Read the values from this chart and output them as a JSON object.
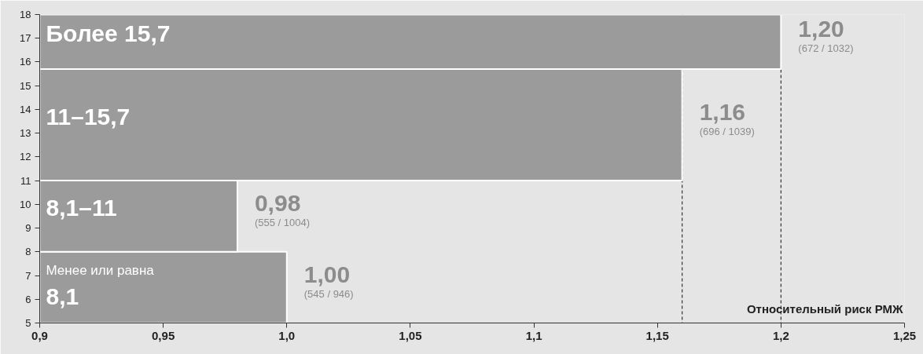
{
  "chart_data": {
    "type": "histogram",
    "orientation": "horizontal",
    "xlabel": "Относительный риск РМЖ",
    "bins": [
      5,
      8,
      11,
      15.7,
      18
    ],
    "values": [
      1.0,
      0.98,
      1.16,
      1.2
    ],
    "color": "#9b9b9b",
    "value_labels": [
      "1,00",
      "0,98",
      "1,16",
      "1,20"
    ],
    "annotations": [
      {
        "text": "Менее или равна 8,1",
        "x": 0.9,
        "y": 6.5
      },
      {
        "text": "8,1–11",
        "x": 0.9,
        "y": 9.5
      },
      {
        "text": "11–15,7",
        "x": 0.9,
        "y": 13.35
      },
      {
        "text": "Более 15,7",
        "x": 0.9,
        "y": 16.85
      },
      {
        "text": "(545 / 946)",
        "x": 1.0,
        "y": 6.5
      },
      {
        "text": "(555 / 1004)",
        "x": 0.98,
        "y": 9.5
      },
      {
        "text": "(696 / 1039)",
        "x": 1.16,
        "y": 13.35
      },
      {
        "text": "(672 / 1032)",
        "x": 1.2,
        "y": 16.85
      }
    ],
    "ref_lines": [
      {
        "axis": "x",
        "value": 1.16,
        "line_style": "dashed"
      },
      {
        "axis": "x",
        "value": 1.2,
        "line_style": "dashed"
      }
    ],
    "xlim": [
      0.9,
      1.25
    ],
    "xticks": [
      {
        "value": 0.9,
        "label": "0,9"
      },
      {
        "value": 0.95,
        "label": "0,95"
      },
      {
        "value": 1.0,
        "label": "1,0"
      },
      {
        "value": 1.05,
        "label": "1,05"
      },
      {
        "value": 1.1,
        "label": "1,1"
      },
      {
        "value": 1.15,
        "label": "1,15"
      },
      {
        "value": 1.2,
        "label": "1,2"
      },
      {
        "value": 1.25,
        "label": "1,25"
      }
    ],
    "ylim": [
      5,
      18
    ],
    "yticks": [
      5,
      6,
      7,
      8,
      9,
      10,
      11,
      12,
      13,
      14,
      15,
      16,
      17,
      18
    ]
  }
}
